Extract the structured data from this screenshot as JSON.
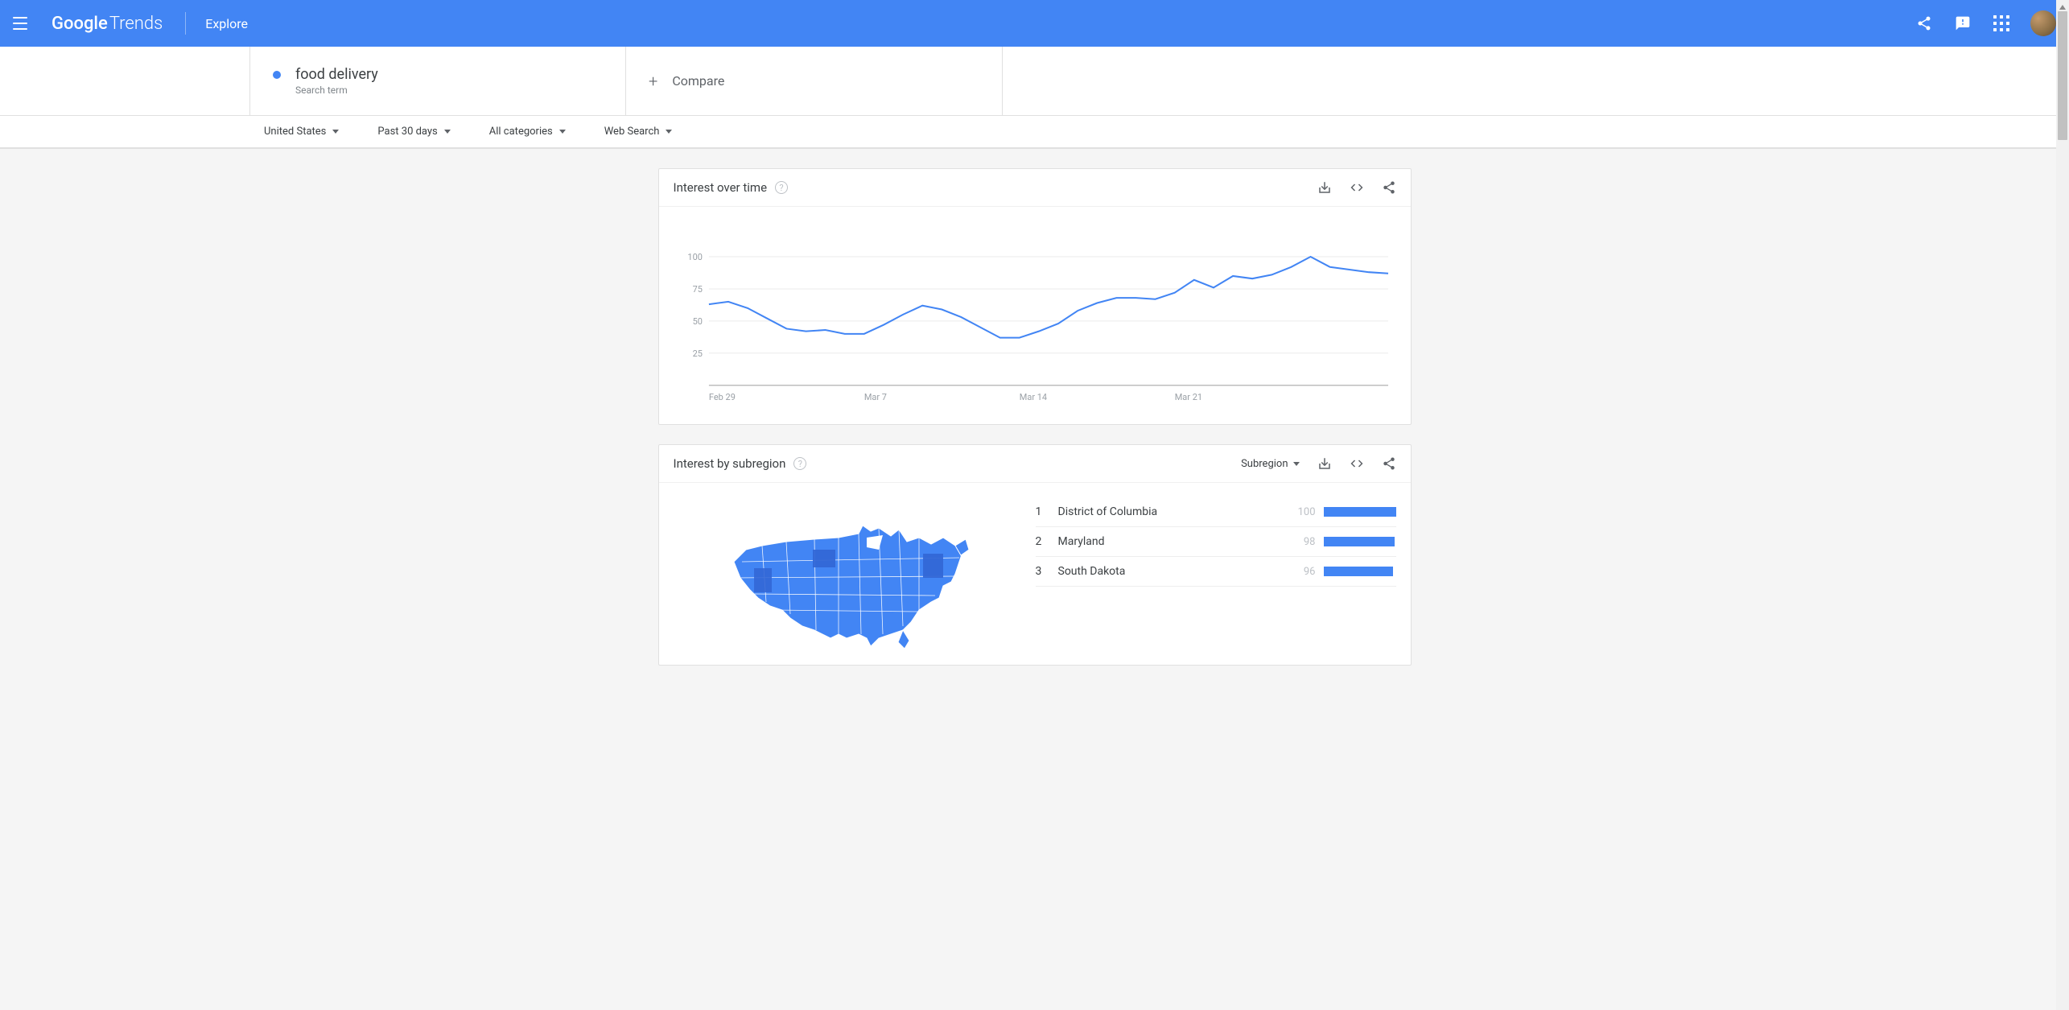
{
  "header": {
    "bg_color": "#4285f4",
    "logo_google": "Google",
    "logo_trends": "Trends",
    "explore": "Explore"
  },
  "search_term": {
    "dot_color": "#4285f4",
    "term": "food delivery",
    "subtype": "Search term",
    "compare_label": "Compare"
  },
  "filters": {
    "region": "United States",
    "timerange": "Past 30 days",
    "category": "All categories",
    "type": "Web Search"
  },
  "time_chart": {
    "title": "Interest over time",
    "type": "line",
    "line_color": "#4285f4",
    "line_width": 2,
    "background_color": "#ffffff",
    "grid_color": "#ebebeb",
    "axis_color": "#bdbdbd",
    "tick_font_size": 11,
    "tick_color": "#9aa0a6",
    "ylim": [
      0,
      110
    ],
    "yticks": [
      25,
      50,
      75,
      100
    ],
    "xticks": [
      "Feb 29",
      "Mar 7",
      "Mar 14",
      "Mar 21"
    ],
    "xtick_positions": [
      0,
      8,
      16,
      24
    ],
    "n_points": 29,
    "values": [
      63,
      65,
      60,
      52,
      44,
      42,
      43,
      40,
      40,
      47,
      55,
      62,
      59,
      53,
      45,
      37,
      37,
      42,
      48,
      58,
      64,
      68,
      68,
      67,
      72,
      82,
      76,
      85,
      83
    ]
  },
  "time_chart_extra_values": [
    86,
    92,
    100,
    92,
    90,
    88,
    87
  ],
  "subregion": {
    "title": "Interest by subregion",
    "dropdown": "Subregion",
    "map_fill": "#4285f4",
    "map_darker": "#3367d6",
    "bar_color": "#4285f4",
    "rows": [
      {
        "rank": "1",
        "name": "District of Columbia",
        "value": "100",
        "pct": 100
      },
      {
        "rank": "2",
        "name": "Maryland",
        "value": "98",
        "pct": 98
      },
      {
        "rank": "3",
        "name": "South Dakota",
        "value": "96",
        "pct": 96
      }
    ]
  }
}
